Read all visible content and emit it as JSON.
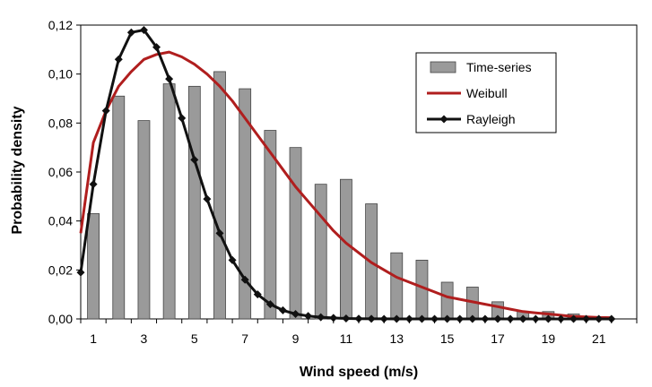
{
  "chart_data": {
    "type": "bar",
    "title": "",
    "xlabel": "Wind speed (m/s)",
    "ylabel": "Probability density",
    "xlim": [
      0.5,
      22.5
    ],
    "ylim": [
      0,
      0.12
    ],
    "y_ticks": [
      "0,00",
      "0,02",
      "0,04",
      "0,06",
      "0,08",
      "0,10",
      "0,12"
    ],
    "x_ticks": [
      "1",
      "3",
      "5",
      "7",
      "9",
      "11",
      "13",
      "15",
      "17",
      "19",
      "21"
    ],
    "x_tick_values": [
      1,
      3,
      5,
      7,
      9,
      11,
      13,
      15,
      17,
      19,
      21
    ],
    "legend_position": "top-right",
    "series": [
      {
        "name": "Time-series",
        "kind": "bar",
        "color": "#9a9a9a",
        "x": [
          1,
          2,
          3,
          4,
          5,
          6,
          7,
          8,
          9,
          10,
          11,
          12,
          13,
          14,
          15,
          16,
          17,
          18,
          19,
          20,
          21
        ],
        "values": [
          0.043,
          0.091,
          0.081,
          0.096,
          0.095,
          0.101,
          0.094,
          0.077,
          0.07,
          0.055,
          0.057,
          0.047,
          0.027,
          0.024,
          0.015,
          0.013,
          0.007,
          0.003,
          0.003,
          0.002,
          0.0005
        ]
      },
      {
        "name": "Weibull",
        "kind": "line",
        "color": "#b01e1e",
        "x": [
          0.5,
          1,
          1.5,
          2,
          2.5,
          3,
          3.5,
          4,
          4.5,
          5,
          5.5,
          6,
          6.5,
          7,
          7.5,
          8,
          8.5,
          9,
          9.5,
          10,
          10.5,
          11,
          11.5,
          12,
          12.5,
          13,
          13.5,
          14,
          14.5,
          15,
          15.5,
          16,
          16.5,
          17,
          17.5,
          18,
          18.5,
          19,
          19.5,
          20,
          20.5,
          21,
          21.5
        ],
        "values": [
          0.035,
          0.072,
          0.085,
          0.095,
          0.101,
          0.106,
          0.108,
          0.109,
          0.107,
          0.104,
          0.1,
          0.095,
          0.089,
          0.082,
          0.075,
          0.068,
          0.061,
          0.054,
          0.048,
          0.042,
          0.036,
          0.031,
          0.027,
          0.023,
          0.02,
          0.017,
          0.015,
          0.013,
          0.011,
          0.009,
          0.008,
          0.007,
          0.006,
          0.005,
          0.004,
          0.003,
          0.0025,
          0.002,
          0.0015,
          0.001,
          0.0008,
          0.0006,
          0.0005
        ]
      },
      {
        "name": "Rayleigh",
        "kind": "line",
        "color": "#111111",
        "x": [
          0.5,
          1,
          1.5,
          2,
          2.5,
          3,
          3.5,
          4,
          4.5,
          5,
          5.5,
          6,
          6.5,
          7,
          7.5,
          8,
          8.5,
          9,
          9.5,
          10,
          10.5,
          11,
          11.5,
          12,
          12.5,
          13,
          13.5,
          14,
          14.5,
          15,
          15.5,
          16,
          16.5,
          17,
          17.5,
          18,
          18.5,
          19,
          19.5,
          20,
          20.5,
          21,
          21.5
        ],
        "values": [
          0.019,
          0.055,
          0.085,
          0.106,
          0.117,
          0.118,
          0.111,
          0.098,
          0.082,
          0.065,
          0.049,
          0.035,
          0.024,
          0.016,
          0.01,
          0.006,
          0.0035,
          0.002,
          0.0012,
          0.0007,
          0.0004,
          0.0002,
          0.0001,
          5e-05,
          2e-05,
          0,
          0,
          0,
          0,
          0,
          0,
          0,
          0,
          0,
          0,
          0,
          0,
          0,
          0,
          0,
          0,
          0,
          0
        ],
        "marker": "diamond"
      }
    ]
  }
}
